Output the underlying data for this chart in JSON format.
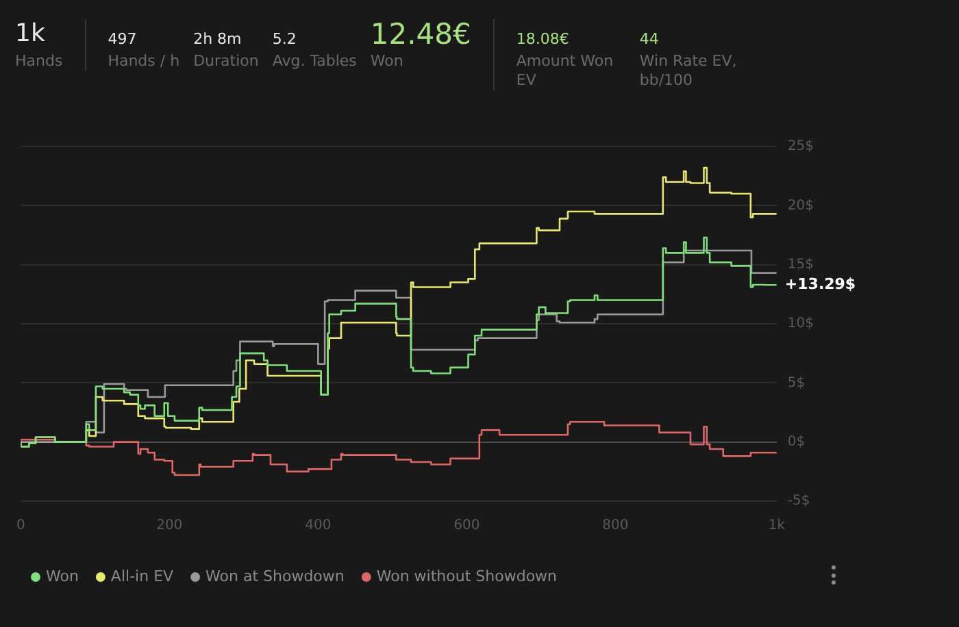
{
  "chart_data": [
    {
      "type": "other",
      "annotations": [
        "1k",
        "Hands",
        "497",
        "Hands / h",
        "2h 8m",
        "Duration",
        "5.2",
        "Avg. Tables",
        "12.48€",
        "Won",
        "18.08€",
        "Amount Won EV",
        "44",
        "Win Rate EV, bb/100"
      ]
    },
    {
      "type": "step",
      "xlim": [
        0,
        1017
      ],
      "xticks": [
        0,
        200,
        400,
        600,
        800,
        {
          "value": 1017,
          "label": "1k"
        }
      ],
      "ylim": [
        -5,
        25
      ],
      "yticks": [
        {
          "value": -5,
          "label": "-5$"
        },
        {
          "value": 0,
          "label": "0$"
        },
        {
          "value": 5,
          "label": "5$"
        },
        {
          "value": 10,
          "label": "10$"
        },
        {
          "value": 15,
          "label": "15$"
        },
        {
          "value": 20,
          "label": "20$"
        },
        {
          "value": 25,
          "label": "25$"
        }
      ],
      "grid": "y",
      "legend": "bottom left",
      "annotations": [
        {
          "text": "+13.29$",
          "x": 1017,
          "y": 13.29
        }
      ],
      "series": [
        {
          "name": "Won",
          "color": "#7ee07a",
          "x": [
            0,
            11,
            20,
            46,
            88,
            92,
            101,
            110,
            139,
            147,
            158,
            161,
            167,
            180,
            193,
            198,
            207,
            229,
            240,
            244,
            284,
            290,
            295,
            314,
            327,
            332,
            358,
            404,
            406,
            413,
            415,
            431,
            450,
            461,
            505,
            506,
            525,
            528,
            552,
            578,
            602,
            611,
            620,
            651,
            694,
            697,
            706,
            736,
            739,
            772,
            776,
            864,
            868,
            892,
            895,
            901,
            919,
            923,
            927,
            956,
            982,
            985,
            1000,
            1017
          ],
          "values": [
            0,
            -0.4,
            -0.1,
            0.4,
            0,
            1.5,
            1.0,
            4.7,
            4.5,
            4.2,
            4.0,
            3.1,
            2.8,
            3.1,
            2.2,
            3.3,
            2.2,
            1.8,
            1.8,
            2.9,
            2.7,
            3.8,
            4.7,
            7.5,
            7.5,
            6.9,
            6.5,
            6.0,
            4.0,
            4.0,
            9.2,
            10.8,
            11.1,
            11.7,
            11.7,
            10.6,
            10.4,
            6.3,
            6.0,
            5.8,
            6.3,
            7.4,
            9.0,
            9.5,
            9.5,
            10.8,
            11.4,
            10.9,
            11.9,
            12.0,
            12.4,
            12.0,
            16.4,
            16.0,
            16.9,
            16.0,
            16.0,
            17.3,
            16.0,
            15.2,
            14.9,
            13.1,
            13.3,
            13.29
          ]
        },
        {
          "name": "All-in EV",
          "color": "#e8e86a",
          "x": [
            0,
            11,
            20,
            46,
            88,
            92,
            101,
            110,
            139,
            158,
            167,
            193,
            195,
            229,
            240,
            244,
            286,
            294,
            303,
            314,
            332,
            404,
            406,
            413,
            415,
            431,
            461,
            505,
            506,
            525,
            528,
            552,
            578,
            602,
            611,
            617,
            651,
            694,
            697,
            725,
            736,
            772,
            864,
            868,
            892,
            895,
            901,
            919,
            923,
            927,
            956,
            982,
            985,
            1000,
            1017
          ],
          "values": [
            0,
            -0.4,
            -0.1,
            0.4,
            0,
            1.0,
            0.5,
            3.8,
            3.5,
            3.2,
            2.2,
            2.0,
            1.3,
            1.2,
            1.1,
            2.0,
            1.7,
            3.4,
            4.5,
            6.9,
            6.6,
            5.6,
            4.0,
            4.0,
            7.9,
            8.8,
            10.1,
            10.1,
            9.2,
            9.0,
            13.5,
            13.1,
            13.1,
            13.5,
            13.8,
            16.3,
            16.8,
            16.8,
            18.1,
            17.9,
            18.9,
            19.5,
            19.3,
            22.4,
            22.0,
            22.9,
            22.0,
            21.9,
            23.2,
            21.9,
            21.1,
            21.0,
            19.0,
            19.3,
            19.3
          ]
        },
        {
          "name": "Won at Showdown",
          "color": "#9a9a9a",
          "x": [
            0,
            88,
            92,
            101,
            103,
            112,
            114,
            139,
            142,
            171,
            172,
            194,
            198,
            286,
            290,
            295,
            308,
            339,
            341,
            345,
            400,
            404,
            409,
            413,
            450,
            461,
            505,
            506,
            525,
            528,
            611,
            615,
            694,
            697,
            699,
            721,
            725,
            772,
            776,
            864,
            868,
            892,
            895,
            983,
            985,
            1017
          ],
          "values": [
            0,
            0,
            1.7,
            1.7,
            0.8,
            0.8,
            4.9,
            4.9,
            4.5,
            4.4,
            3.8,
            3.8,
            4.8,
            4.8,
            6.0,
            6.9,
            8.5,
            8.5,
            8.1,
            8.3,
            8.3,
            6.6,
            6.6,
            11.9,
            12.0,
            12.8,
            12.8,
            12.2,
            12.2,
            7.8,
            7.8,
            8.6,
            8.8,
            10.3,
            10.8,
            10.8,
            10.2,
            10.1,
            10.4,
            10.8,
            15.2,
            15.2,
            16.2,
            16.2,
            14.3,
            14.3
          ]
        },
        {
          "name": "Won without Showdown",
          "color": "#e06666",
          "x": [
            0,
            46,
            88,
            92,
            125,
            147,
            158,
            161,
            171,
            180,
            193,
            204,
            207,
            222,
            240,
            242,
            286,
            290,
            312,
            314,
            336,
            358,
            387,
            418,
            431,
            433,
            505,
            506,
            525,
            552,
            578,
            602,
            617,
            620,
            644,
            694,
            736,
            739,
            785,
            859,
            901,
            905,
            919,
            923,
            927,
            945,
            969,
            982,
            1000,
            1017
          ],
          "values": [
            0,
            0.2,
            0,
            -0.3,
            -0.4,
            0.0,
            0.0,
            -1.0,
            -0.6,
            -0.9,
            -1.5,
            -1.6,
            -2.6,
            -2.8,
            -2.8,
            -1.9,
            -2.1,
            -1.6,
            -1.6,
            -1.0,
            -1.1,
            -1.9,
            -2.5,
            -2.3,
            -1.5,
            -1.0,
            -1.1,
            -1.5,
            -1.5,
            -1.7,
            -1.9,
            -1.4,
            -1.4,
            0.6,
            1.0,
            0.6,
            0.6,
            1.5,
            1.7,
            1.4,
            0.8,
            -0.2,
            -0.2,
            1.3,
            -0.2,
            -0.6,
            -1.2,
            -1.2,
            -0.9,
            -0.9
          ]
        }
      ]
    }
  ]
}
